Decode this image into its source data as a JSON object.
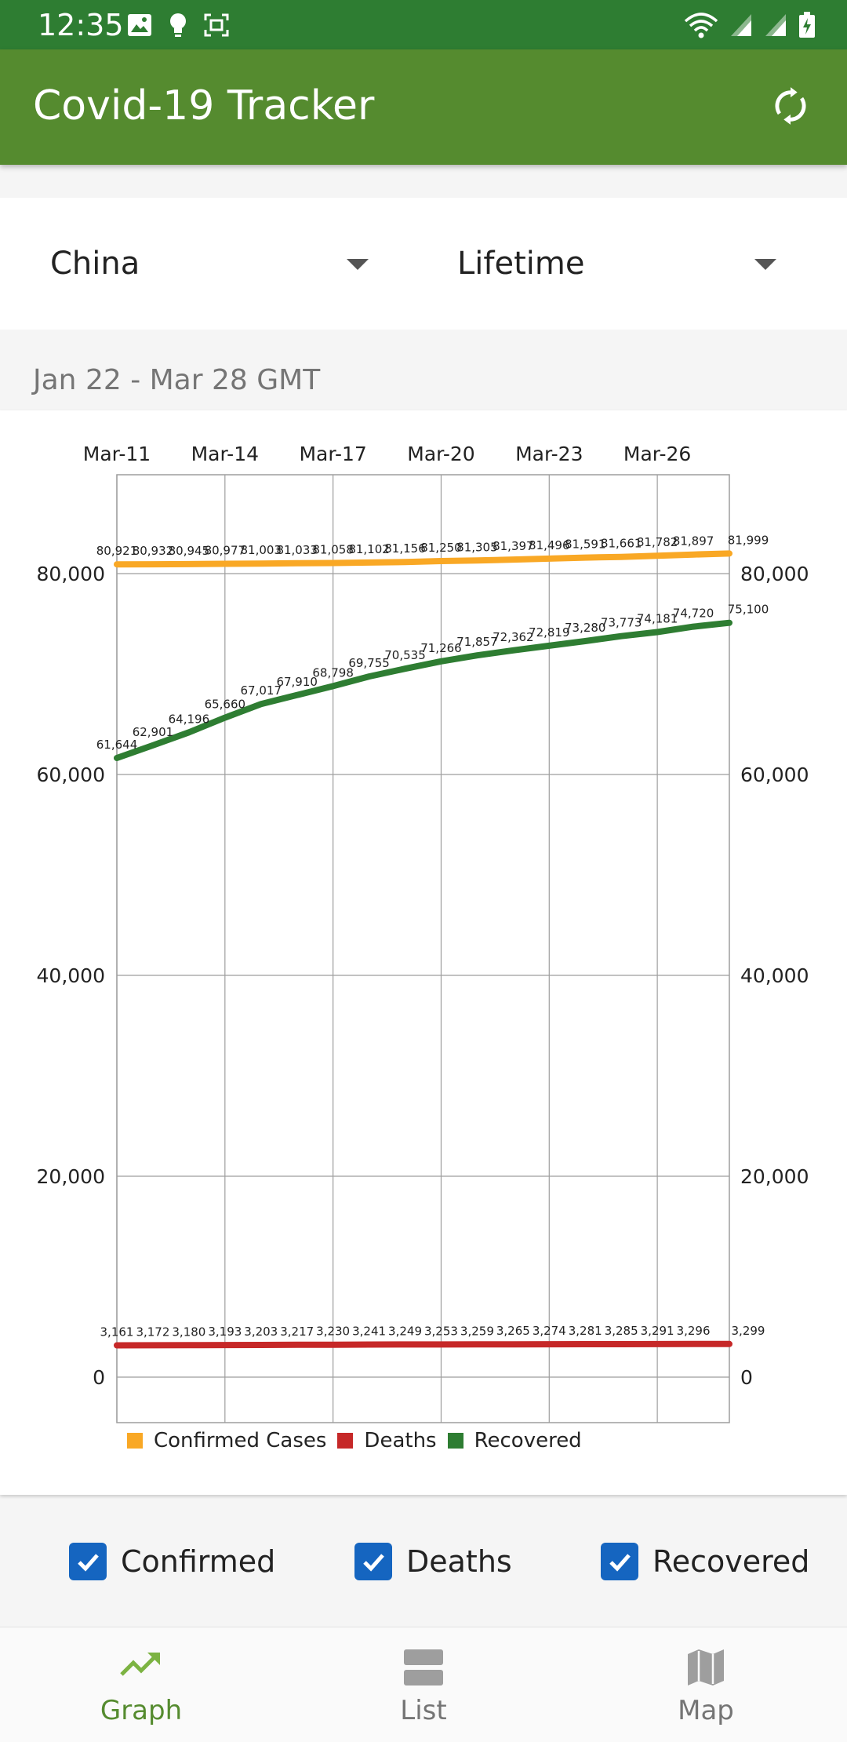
{
  "status_bar": {
    "time": "12:35",
    "icons_left": [
      "image-icon",
      "bulb-icon",
      "screenshot-icon"
    ],
    "icons_right": [
      "wifi-icon",
      "signal-icon",
      "signal-icon",
      "battery-charging-icon"
    ]
  },
  "app_bar": {
    "title": "Covid-19 Tracker",
    "refresh_icon": "refresh-icon"
  },
  "filters": {
    "country": {
      "selected": "China"
    },
    "range": {
      "selected": "Lifetime"
    }
  },
  "date_range": "Jan 22 - Mar 28 GMT",
  "chart_data": {
    "type": "line",
    "x_tick_labels": [
      "Mar-11",
      "Mar-14",
      "Mar-17",
      "Mar-20",
      "Mar-23",
      "Mar-26"
    ],
    "x_dates": [
      "Mar-11",
      "Mar-12",
      "Mar-13",
      "Mar-14",
      "Mar-15",
      "Mar-16",
      "Mar-17",
      "Mar-18",
      "Mar-19",
      "Mar-20",
      "Mar-21",
      "Mar-22",
      "Mar-23",
      "Mar-24",
      "Mar-25",
      "Mar-26",
      "Mar-27",
      "Mar-28"
    ],
    "ylim": [
      0,
      90000
    ],
    "y_ticks": [
      0,
      20000,
      40000,
      60000,
      80000
    ],
    "y_tick_labels": [
      "0",
      "20,000",
      "40,000",
      "60,000",
      "80,000"
    ],
    "grid": true,
    "legend_position": "bottom-left",
    "series": [
      {
        "name": "Confirmed Cases",
        "color": "#f9a825",
        "values": [
          80921,
          80932,
          80945,
          80977,
          81003,
          81033,
          81058,
          81102,
          81156,
          81250,
          81305,
          81397,
          81496,
          81591,
          81661,
          81782,
          81897,
          81999
        ],
        "labels": [
          "80,921",
          "80,932",
          "80,945",
          "80,977",
          "81,003",
          "81,033",
          "81,058",
          "81,102",
          "81,156",
          "81,250",
          "81,305",
          "81,397",
          "81,496",
          "81,591",
          "81,661",
          "81,782",
          "81,897",
          "81,999"
        ]
      },
      {
        "name": "Deaths",
        "color": "#c62828",
        "values": [
          3161,
          3172,
          3180,
          3193,
          3203,
          3217,
          3230,
          3241,
          3249,
          3253,
          3259,
          3265,
          3274,
          3281,
          3285,
          3291,
          3296,
          3299
        ],
        "labels": [
          "3,161",
          "3,172",
          "3,180",
          "3,193",
          "3,203",
          "3,217",
          "3,230",
          "3,241",
          "3,249",
          "3,253",
          "3,259",
          "3,265",
          "3,274",
          "3,281",
          "3,285",
          "3,291",
          "3,296",
          "3,299"
        ]
      },
      {
        "name": "Recovered",
        "color": "#2e7d32",
        "values": [
          61644,
          62901,
          64196,
          65660,
          67017,
          67910,
          68798,
          69755,
          70535,
          71266,
          71857,
          72362,
          72819,
          73280,
          73773,
          74181,
          74720,
          75100
        ],
        "labels": [
          "61,644",
          "62,901",
          "64,196",
          "65,660",
          "67,017",
          "67,910",
          "68,798",
          "69,755",
          "70,535",
          "71,266",
          "71,857",
          "72,362",
          "72,819",
          "73,280",
          "73,773",
          "74,181",
          "74,720",
          "75,100"
        ]
      }
    ]
  },
  "toggles": {
    "confirmed": {
      "label": "Confirmed",
      "checked": true
    },
    "deaths": {
      "label": "Deaths",
      "checked": true
    },
    "recovered": {
      "label": "Recovered",
      "checked": true
    }
  },
  "bottom_nav": {
    "items": [
      {
        "label": "Graph",
        "icon": "trending-up-icon",
        "active": true
      },
      {
        "label": "List",
        "icon": "list-icon",
        "active": false
      },
      {
        "label": "Map",
        "icon": "map-icon",
        "active": false
      }
    ]
  }
}
